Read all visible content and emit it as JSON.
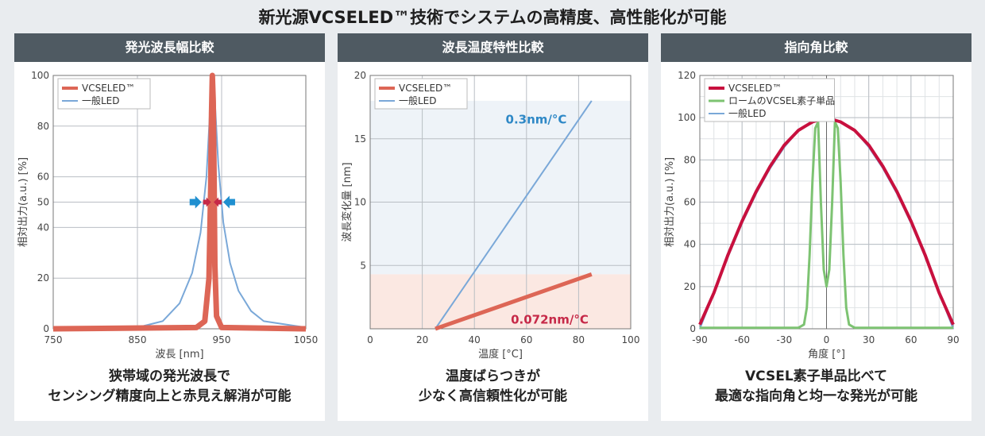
{
  "title": "新光源VCSELED™技術でシステムの高精度、高性能化が可能",
  "colors": {
    "vcseled": "#dd6656",
    "led": "#7aa8d8",
    "rohm_vcsel": "#7dc372",
    "vcseled_angle": "#c8103e",
    "accent_text": "#2e88c6",
    "accent_red": "#c62948",
    "arrow_blue": "#1f8fd0"
  },
  "panels": [
    {
      "header": "発光波長幅比較",
      "caption": [
        "狭帯域の発光波長で",
        "センシング精度向上と赤見え解消が可能"
      ],
      "chart_data": {
        "type": "line",
        "xlabel": "波長 [nm]",
        "ylabel": "相対出力(a.u.) [%]",
        "xlim": [
          750,
          1050
        ],
        "ylim": [
          0,
          100
        ],
        "xticks": [
          "750",
          "850",
          "950",
          "1050"
        ],
        "yticks": [
          "0",
          "20",
          "40",
          "50",
          "60",
          "80",
          "100"
        ],
        "legend": {
          "position": "top-left",
          "entries": [
            "VCSELED™",
            "一般LED"
          ]
        },
        "series": [
          {
            "name": "VCSELED™",
            "x": [
              750,
              920,
              930,
              935,
              937,
              938,
              939,
              940,
              941,
              942,
              944,
              950,
              1050
            ],
            "y": [
              0,
              0.5,
              3,
              20,
              55,
              85,
              100,
              90,
              60,
              25,
              5,
              0.5,
              0
            ]
          },
          {
            "name": "一般LED",
            "x": [
              750,
              850,
              880,
              900,
              915,
              925,
              932,
              936,
              939,
              942,
              946,
              952,
              960,
              970,
              985,
              1000,
              1050
            ],
            "y": [
              0,
              0.5,
              3,
              10,
              22,
              38,
              60,
              85,
              100,
              90,
              65,
              42,
              26,
              15,
              7,
              3,
              0.5
            ]
          }
        ]
      }
    },
    {
      "header": "波長温度特性比較",
      "caption": [
        "温度ばらつきが",
        "少なく高信頼性化が可能"
      ],
      "chart_data": {
        "type": "line",
        "xlabel": "温度 [°C]",
        "ylabel": "波長変化量 [nm]",
        "xlim": [
          0,
          100
        ],
        "ylim": [
          0,
          20
        ],
        "xticks": [
          "0",
          "20",
          "40",
          "60",
          "80",
          "100"
        ],
        "yticks": [
          "5",
          "10",
          "15",
          "20"
        ],
        "legend": {
          "position": "top-left",
          "entries": [
            "VCSELED™",
            "一般LED"
          ]
        },
        "annotations": [
          "0.3nm/°C",
          "0.072nm/°C"
        ],
        "series": [
          {
            "name": "VCSELED™",
            "x": [
              25,
              85
            ],
            "y": [
              0,
              4.3
            ]
          },
          {
            "name": "一般LED",
            "x": [
              25,
              85
            ],
            "y": [
              0,
              18
            ]
          }
        ]
      }
    },
    {
      "header": "指向角比較",
      "caption": [
        "VCSEL素子単品比べて",
        "最適な指向角と均一な発光が可能"
      ],
      "chart_data": {
        "type": "line",
        "xlabel": "角度 [°]",
        "ylabel": "相対出力(a.u.) [%]",
        "xlim": [
          -90,
          90
        ],
        "ylim": [
          0,
          120
        ],
        "xticks": [
          "-90",
          "-60",
          "-30",
          "0",
          "30",
          "60",
          "90"
        ],
        "yticks": [
          "0",
          "20",
          "40",
          "60",
          "80",
          "100",
          "120"
        ],
        "legend": {
          "position": "top-left",
          "entries": [
            "VCSELED™",
            "ロームのVCSEL素子単品",
            "一般LED"
          ]
        },
        "series": [
          {
            "name": "VCSELED™",
            "x": [
              -90,
              -80,
              -70,
              -60,
              -50,
              -40,
              -30,
              -20,
              -10,
              0,
              10,
              20,
              30,
              40,
              50,
              60,
              70,
              80,
              90
            ],
            "y": [
              2,
              17,
              35,
              51,
              65,
              77,
              87,
              94,
              98,
              100,
              98,
              94,
              87,
              77,
              65,
              51,
              35,
              17,
              2
            ]
          },
          {
            "name": "ロームのVCSEL素子単品",
            "x": [
              -90,
              -20,
              -16,
              -14,
              -12,
              -10,
              -8,
              -6,
              -4,
              -2,
              0,
              2,
              4,
              6,
              8,
              10,
              12,
              14,
              16,
              20,
              90
            ],
            "y": [
              0.5,
              0.5,
              2,
              10,
              35,
              70,
              95,
              98,
              60,
              28,
              20,
              28,
              60,
              98,
              95,
              70,
              35,
              10,
              2,
              0.5,
              0.5
            ]
          },
          {
            "name": "一般LED",
            "x": [
              -90,
              -80,
              -70,
              -60,
              -50,
              -40,
              -30,
              -20,
              -10,
              0,
              10,
              20,
              30,
              40,
              50,
              60,
              70,
              80,
              90
            ],
            "y": [
              0,
              17,
              34,
              50,
              64,
              76,
              86,
              94,
              98,
              100,
              98,
              94,
              86,
              76,
              64,
              50,
              34,
              17,
              0
            ]
          }
        ]
      }
    }
  ]
}
